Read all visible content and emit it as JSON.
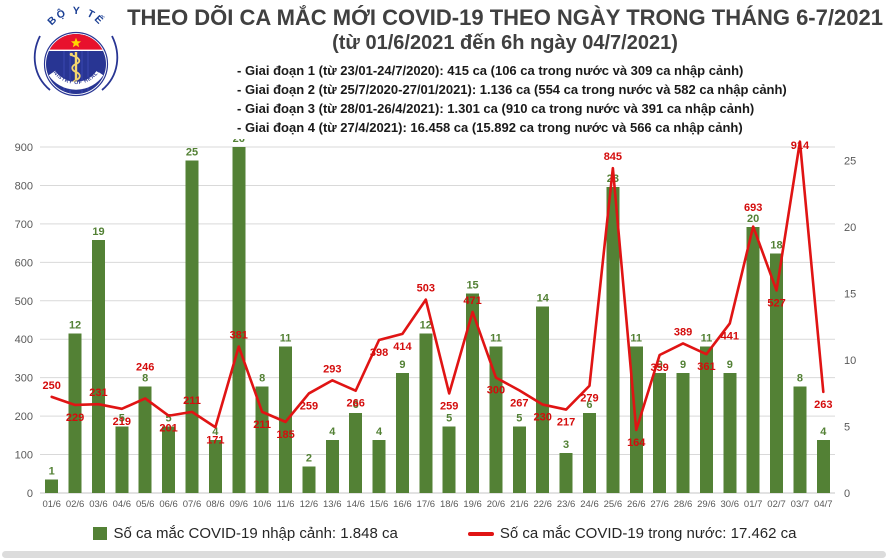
{
  "header": {
    "title": "THEO DÕI CA MẮC MỚI COVID-19 THEO NGÀY TRONG THÁNG 6-7/2021",
    "subtitle": "(từ 01/6/2021 đến 6h ngày 04/7/2021)",
    "logo": {
      "top_text": "BỘ Y TẾ",
      "bottom_text": "MINISTRY OF HEALTH"
    }
  },
  "phases": [
    "- Giai đoạn 1 (từ 23/01-24/7/2020): 415 ca (106 ca trong nước và 309 ca nhập cảnh)",
    "- Giai đoạn 2 (từ 25/7/2020-27/01/2021): 1.136 ca (554 ca trong nước và 582 ca nhập cảnh)",
    "- Giai đoạn 3 (từ 28/01-26/4/2021): 1.301 ca (910 ca trong nước và 391 ca nhập cảnh)",
    "- Giai đoạn 4 (từ 27/4/2021): 16.458 ca (15.892 ca trong nước và 566 ca nhập cảnh)"
  ],
  "chart_data": {
    "type": "bar+line",
    "categories": [
      "01/6",
      "02/6",
      "03/6",
      "04/6",
      "05/6",
      "06/6",
      "07/6",
      "08/6",
      "09/6",
      "10/6",
      "11/6",
      "12/6",
      "13/6",
      "14/6",
      "15/6",
      "16/6",
      "17/6",
      "18/6",
      "19/6",
      "20/6",
      "21/6",
      "22/6",
      "23/6",
      "24/6",
      "25/6",
      "26/6",
      "27/6",
      "28/6",
      "29/6",
      "30/6",
      "01/7",
      "02/7",
      "03/7",
      "04/7"
    ],
    "series": [
      {
        "name": "Số ca mắc COVID-19 nhập cảnh",
        "type": "bar",
        "axis": "right",
        "color": "#538135",
        "values": [
          1,
          12,
          19,
          5,
          8,
          5,
          25,
          4,
          26,
          8,
          11,
          2,
          4,
          6,
          4,
          9,
          12,
          5,
          15,
          11,
          5,
          14,
          3,
          6,
          23,
          11,
          9,
          9,
          11,
          9,
          20,
          18,
          8,
          4
        ]
      },
      {
        "name": "Số ca mắc COVID-19 trong nước",
        "type": "line",
        "axis": "left",
        "color": "#e01414",
        "values": [
          250,
          229,
          231,
          219,
          246,
          201,
          211,
          171,
          381,
          211,
          185,
          259,
          293,
          266,
          398,
          414,
          503,
          259,
          471,
          300,
          267,
          230,
          217,
          279,
          845,
          164,
          359,
          389,
          361,
          441,
          693,
          527,
          914,
          263
        ]
      }
    ],
    "left_axis": {
      "min": 0,
      "max": 900,
      "step": 100
    },
    "right_axis": {
      "min": 0,
      "max": 25,
      "step": 5
    },
    "grid": true,
    "legend_position": "bottom",
    "colors": {
      "grid": "#d9d9d9",
      "axis_text": "#595959",
      "bar_label": "#538135",
      "line_label": "#d40c0c"
    }
  },
  "legend": {
    "imported_label": "Số ca mắc COVID-19 nhập cảnh: 1.848 ca",
    "domestic_label": "Số ca mắc COVID-19 trong nước: 17.462 ca"
  }
}
